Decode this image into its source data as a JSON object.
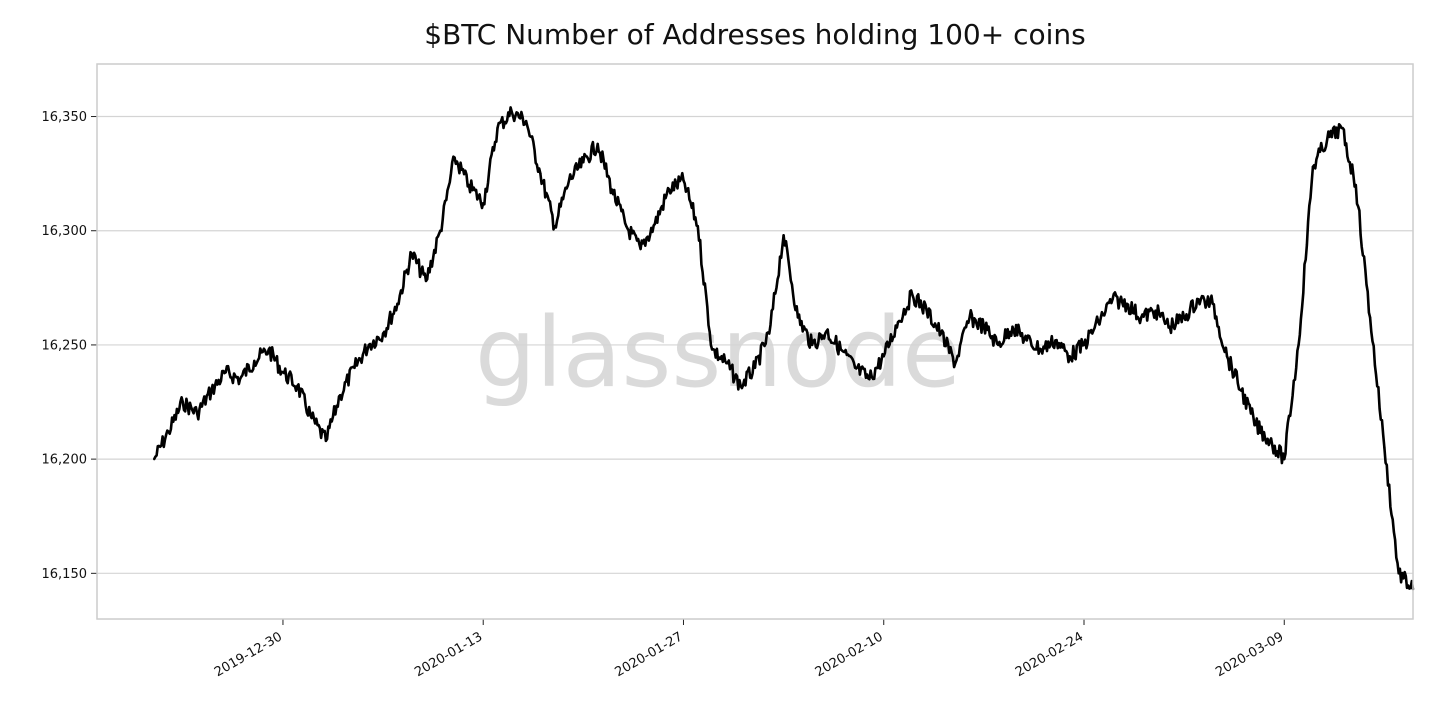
{
  "chart_data": {
    "type": "line",
    "title": "$BTC Number of Addresses holding 100+ coins",
    "watermark": "glassnode",
    "xlabel": "",
    "ylabel": "",
    "x_range": [
      "2019-12-17",
      "2020-03-18"
    ],
    "ylim": [
      16130,
      16373
    ],
    "x_ticks": [
      "2019-12-30",
      "2020-01-13",
      "2020-01-27",
      "2020-02-10",
      "2020-02-24",
      "2020-03-09"
    ],
    "y_ticks": [
      16150,
      16200,
      16250,
      16300,
      16350
    ],
    "y_tick_labels": [
      "16,150",
      "16,200",
      "16,250",
      "16,300",
      "16,350"
    ],
    "grid": "horizontal",
    "legend": "none",
    "line_color": "#000000",
    "grid_color": "#d4d4d4",
    "frame_color": "#cccccc",
    "series": [
      {
        "points": [
          [
            "2019-12-21",
            16200
          ],
          [
            "2019-12-22",
            16212
          ],
          [
            "2019-12-23",
            16225
          ],
          [
            "2019-12-24",
            16220
          ],
          [
            "2019-12-25",
            16230
          ],
          [
            "2019-12-26",
            16238
          ],
          [
            "2019-12-27",
            16235
          ],
          [
            "2019-12-28",
            16243
          ],
          [
            "2019-12-29",
            16248
          ],
          [
            "2019-12-30",
            16238
          ],
          [
            "2019-12-31",
            16232
          ],
          [
            "2020-01-01",
            16218
          ],
          [
            "2020-01-02",
            16208
          ],
          [
            "2020-01-03",
            16228
          ],
          [
            "2020-01-04",
            16240
          ],
          [
            "2020-01-05",
            16250
          ],
          [
            "2020-01-06",
            16255
          ],
          [
            "2020-01-07",
            16268
          ],
          [
            "2020-01-08",
            16290
          ],
          [
            "2020-01-09",
            16278
          ],
          [
            "2020-01-10",
            16300
          ],
          [
            "2020-01-11",
            16332
          ],
          [
            "2020-01-12",
            16320
          ],
          [
            "2020-01-13",
            16312
          ],
          [
            "2020-01-14",
            16345
          ],
          [
            "2020-01-15",
            16352
          ],
          [
            "2020-01-16",
            16348
          ],
          [
            "2020-01-17",
            16325
          ],
          [
            "2020-01-18",
            16302
          ],
          [
            "2020-01-19",
            16322
          ],
          [
            "2020-01-20",
            16330
          ],
          [
            "2020-01-21",
            16338
          ],
          [
            "2020-01-22",
            16318
          ],
          [
            "2020-01-23",
            16302
          ],
          [
            "2020-01-24",
            16292
          ],
          [
            "2020-01-25",
            16303
          ],
          [
            "2020-01-26",
            16318
          ],
          [
            "2020-01-27",
            16322
          ],
          [
            "2020-01-28",
            16302
          ],
          [
            "2020-01-29",
            16248
          ],
          [
            "2020-01-30",
            16242
          ],
          [
            "2020-01-31",
            16232
          ],
          [
            "2020-02-01",
            16240
          ],
          [
            "2020-02-02",
            16255
          ],
          [
            "2020-02-03",
            16298
          ],
          [
            "2020-02-04",
            16262
          ],
          [
            "2020-02-05",
            16250
          ],
          [
            "2020-02-06",
            16256
          ],
          [
            "2020-02-07",
            16248
          ],
          [
            "2020-02-08",
            16240
          ],
          [
            "2020-02-09",
            16235
          ],
          [
            "2020-02-10",
            16245
          ],
          [
            "2020-02-11",
            16260
          ],
          [
            "2020-02-12",
            16272
          ],
          [
            "2020-02-13",
            16265
          ],
          [
            "2020-02-14",
            16255
          ],
          [
            "2020-02-15",
            16242
          ],
          [
            "2020-02-16",
            16262
          ],
          [
            "2020-02-17",
            16258
          ],
          [
            "2020-02-18",
            16250
          ],
          [
            "2020-02-19",
            16258
          ],
          [
            "2020-02-20",
            16252
          ],
          [
            "2020-02-21",
            16248
          ],
          [
            "2020-02-22",
            16252
          ],
          [
            "2020-02-23",
            16245
          ],
          [
            "2020-02-24",
            16250
          ],
          [
            "2020-02-25",
            16260
          ],
          [
            "2020-02-26",
            16270
          ],
          [
            "2020-02-27",
            16268
          ],
          [
            "2020-02-28",
            16262
          ],
          [
            "2020-02-29",
            16265
          ],
          [
            "2020-03-01",
            16258
          ],
          [
            "2020-03-02",
            16262
          ],
          [
            "2020-03-03",
            16270
          ],
          [
            "2020-03-04",
            16268
          ],
          [
            "2020-03-05",
            16245
          ],
          [
            "2020-03-06",
            16230
          ],
          [
            "2020-03-07",
            16215
          ],
          [
            "2020-03-08",
            16208
          ],
          [
            "2020-03-09",
            16200
          ],
          [
            "2020-03-10",
            16250
          ],
          [
            "2020-03-11",
            16328
          ],
          [
            "2020-03-12",
            16340
          ],
          [
            "2020-03-13",
            16345
          ],
          [
            "2020-03-14",
            16320
          ],
          [
            "2020-03-15",
            16262
          ],
          [
            "2020-03-16",
            16205
          ],
          [
            "2020-03-17",
            16150
          ],
          [
            "2020-03-18",
            16143
          ]
        ]
      }
    ]
  }
}
